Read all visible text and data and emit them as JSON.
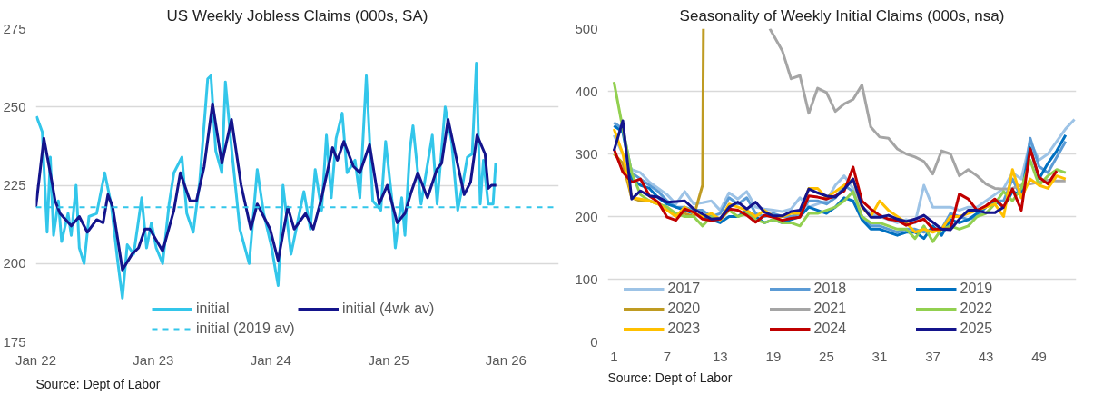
{
  "chart_data": [
    {
      "type": "line",
      "title": "US Weekly Jobless Claims (000s, SA)",
      "annotations": [
        "Source: Dept of Labor"
      ],
      "xlim": [
        "2022-01-01",
        "2026-06-14"
      ],
      "xticks": [
        {
          "value": "2022-01-01",
          "label": "Jan 22"
        },
        {
          "value": "2023-01-01",
          "label": "Jan 23"
        },
        {
          "value": "2024-01-01",
          "label": "Jan 24"
        },
        {
          "value": "2025-01-01",
          "label": "Jan 25"
        },
        {
          "value": "2026-01-01",
          "label": "Jan 26"
        }
      ],
      "ylim": [
        175,
        275
      ],
      "yticks": [
        175,
        200,
        225,
        250,
        275
      ],
      "grid": "y",
      "legend": "bottom",
      "ref_lines": [
        {
          "axis": "y",
          "value": 218,
          "label": "initial (2019 av)",
          "color": "#33c6ea",
          "line_style": "dashed"
        }
      ],
      "series": [
        {
          "name": "initial",
          "color": "#33c6ea",
          "x": [
            "2022-01-03",
            "2022-01-21",
            "2022-02-05",
            "2022-02-15",
            "2022-02-25",
            "2022-03-12",
            "2022-03-22",
            "2022-04-11",
            "2022-04-21",
            "2022-05-06",
            "2022-05-16",
            "2022-05-31",
            "2022-06-15",
            "2022-07-09",
            "2022-08-03",
            "2022-08-23",
            "2022-09-12",
            "2022-09-27",
            "2022-10-12",
            "2022-11-01",
            "2022-11-26",
            "2022-12-11",
            "2022-12-26",
            "2023-01-10",
            "2023-01-30",
            "2023-02-19",
            "2023-03-06",
            "2023-03-31",
            "2023-04-15",
            "2023-05-05",
            "2023-05-25",
            "2023-06-19",
            "2023-06-29",
            "2023-07-14",
            "2023-08-02",
            "2023-08-13",
            "2023-09-01",
            "2023-09-27",
            "2023-10-26",
            "2023-11-20",
            "2023-12-10",
            "2024-01-04",
            "2024-01-17",
            "2024-01-24",
            "2024-02-08",
            "2024-03-04",
            "2024-04-13",
            "2024-05-03",
            "2024-05-18",
            "2024-06-07",
            "2024-06-22",
            "2024-07-07",
            "2024-07-22",
            "2024-08-10",
            "2024-08-25",
            "2024-09-19",
            "2024-10-04",
            "2024-10-24",
            "2024-11-13",
            "2024-12-08",
            "2024-12-23",
            "2025-01-12",
            "2025-01-22",
            "2025-02-11",
            "2025-02-21",
            "2025-03-08",
            "2025-03-18",
            "2025-04-12",
            "2025-05-17",
            "2025-06-01",
            "2025-06-26",
            "2025-07-16",
            "2025-08-04",
            "2025-08-19",
            "2025-09-03",
            "2025-09-18",
            "2025-10-01",
            "2025-10-13",
            "2025-10-23",
            "2025-11-07",
            "2025-11-22",
            "2025-11-30"
          ],
          "values": [
            247,
            242,
            210,
            234,
            209,
            220,
            207,
            216,
            209,
            225,
            205,
            200,
            215,
            216,
            229,
            219,
            201,
            189,
            206,
            203,
            221,
            205,
            213,
            205,
            200,
            219,
            229,
            234,
            216,
            210,
            226,
            259,
            260,
            236,
            229,
            258,
            237,
            211,
            200,
            230,
            216,
            205,
            197,
            193,
            225,
            203,
            223,
            211,
            230,
            217,
            241,
            221,
            240,
            248,
            229,
            233,
            221,
            260,
            220,
            217,
            239,
            220,
            205,
            221,
            209,
            236,
            244,
            219,
            241,
            219,
            250,
            239,
            217,
            225,
            234,
            235,
            264,
            219,
            233,
            219,
            219,
            232
          ]
        },
        {
          "name": "initial (4wk av)",
          "color": "#14148c",
          "x": [
            "2022-01-01",
            "2022-01-26",
            "2022-02-20",
            "2022-03-02",
            "2022-03-17",
            "2022-04-21",
            "2022-05-16",
            "2022-06-10",
            "2022-07-09",
            "2022-07-29",
            "2022-08-13",
            "2022-08-28",
            "2022-09-27",
            "2022-10-27",
            "2022-11-16",
            "2022-12-06",
            "2022-12-21",
            "2023-01-30",
            "2023-03-06",
            "2023-03-26",
            "2023-04-25",
            "2023-05-15",
            "2023-06-08",
            "2023-07-04",
            "2023-08-02",
            "2023-09-01",
            "2023-10-01",
            "2023-10-31",
            "2023-11-20",
            "2023-12-30",
            "2024-01-24",
            "2024-02-23",
            "2024-03-14",
            "2024-04-18",
            "2024-05-12",
            "2024-06-07",
            "2024-07-11",
            "2024-07-26",
            "2024-08-15",
            "2024-09-14",
            "2024-10-04",
            "2024-11-03",
            "2024-12-03",
            "2024-12-28",
            "2025-01-28",
            "2025-02-21",
            "2025-03-13",
            "2025-04-02",
            "2025-05-02",
            "2025-05-31",
            "2025-06-15",
            "2025-07-05",
            "2025-07-30",
            "2025-08-24",
            "2025-09-13",
            "2025-10-03",
            "2025-10-28",
            "2025-11-07",
            "2025-11-17",
            "2025-12-02"
          ],
          "values": [
            218,
            240,
            226,
            220,
            216,
            212,
            215,
            210,
            214,
            213,
            222,
            218,
            198,
            203,
            205,
            211,
            211,
            204,
            217,
            229,
            220,
            220,
            231,
            251,
            232,
            246,
            225,
            211,
            219,
            211,
            201,
            218,
            211,
            216,
            211,
            221,
            237,
            233,
            239,
            231,
            229,
            238,
            219,
            225,
            213,
            216,
            223,
            229,
            221,
            230,
            232,
            246,
            234,
            222,
            226,
            241,
            235,
            224,
            225,
            225
          ]
        }
      ]
    },
    {
      "type": "line",
      "title": "Seasonality of Weekly Initial Claims (000s, nsa)",
      "annotations": [
        "Source: Dept of Labor"
      ],
      "xlim": [
        0.3,
        53.2
      ],
      "xticks": [
        1,
        7,
        13,
        19,
        25,
        31,
        37,
        43,
        49
      ],
      "ylim": [
        0,
        500
      ],
      "yticks": [
        0,
        100,
        200,
        300,
        400,
        500
      ],
      "grid": "y",
      "legend": "bottom",
      "series": [
        {
          "name": "2017",
          "color": "#9dc3e6",
          "x": [
            1,
            2,
            3,
            4,
            5,
            6,
            7,
            8,
            9,
            10,
            11,
            12,
            13,
            14,
            15,
            16,
            17,
            18,
            19,
            20,
            21,
            22,
            23,
            24,
            25,
            26,
            27,
            28,
            29,
            30,
            31,
            32,
            33,
            34,
            35,
            36,
            37,
            38,
            39,
            40,
            41,
            42,
            43,
            44,
            45,
            46,
            47,
            48,
            49,
            50,
            51,
            52,
            53
          ],
          "values": [
            330,
            300,
            275,
            270,
            255,
            245,
            235,
            220,
            240,
            220,
            222,
            225,
            210,
            238,
            228,
            240,
            215,
            212,
            210,
            208,
            212,
            230,
            215,
            220,
            225,
            250,
            265,
            245,
            215,
            205,
            200,
            195,
            190,
            195,
            190,
            250,
            215,
            215,
            215,
            210,
            215,
            215,
            225,
            235,
            245,
            270,
            260,
            320,
            290,
            300,
            320,
            340,
            355
          ]
        },
        {
          "name": "2018",
          "color": "#5b9bd5",
          "x": [
            1,
            2,
            3,
            4,
            5,
            6,
            7,
            8,
            9,
            10,
            11,
            12,
            13,
            14,
            15,
            16,
            17,
            18,
            19,
            20,
            21,
            22,
            23,
            24,
            25,
            26,
            27,
            28,
            29,
            30,
            31,
            32,
            33,
            34,
            35,
            36,
            37,
            38,
            39,
            40,
            41,
            42,
            43,
            44,
            45,
            46,
            47,
            48,
            49,
            50,
            51,
            52
          ],
          "values": [
            350,
            340,
            270,
            260,
            250,
            240,
            225,
            215,
            215,
            210,
            210,
            200,
            205,
            230,
            220,
            230,
            205,
            200,
            205,
            200,
            200,
            205,
            225,
            225,
            220,
            230,
            250,
            240,
            200,
            185,
            185,
            180,
            175,
            180,
            180,
            175,
            180,
            180,
            205,
            200,
            195,
            200,
            215,
            225,
            225,
            260,
            230,
            325,
            280,
            270,
            295,
            320
          ]
        },
        {
          "name": "2019",
          "color": "#0070c0",
          "x": [
            1,
            2,
            3,
            4,
            5,
            6,
            7,
            8,
            9,
            10,
            11,
            12,
            13,
            14,
            15,
            16,
            17,
            18,
            19,
            20,
            21,
            22,
            23,
            24,
            25,
            26,
            27,
            28,
            29,
            30,
            31,
            32,
            33,
            34,
            35,
            36,
            37,
            38,
            39,
            40,
            41,
            42,
            43,
            44,
            45,
            46,
            47,
            48,
            49,
            50,
            51,
            52
          ],
          "values": [
            345,
            335,
            260,
            250,
            245,
            230,
            220,
            215,
            210,
            205,
            200,
            195,
            190,
            200,
            200,
            210,
            200,
            190,
            195,
            190,
            195,
            200,
            215,
            210,
            205,
            215,
            230,
            225,
            195,
            180,
            180,
            175,
            170,
            175,
            175,
            165,
            185,
            170,
            195,
            190,
            195,
            205,
            215,
            225,
            215,
            240,
            235,
            310,
            260,
            285,
            305,
            330
          ]
        },
        {
          "name": "2020",
          "color": "#bf9b22",
          "x": [
            1,
            2,
            3,
            4,
            5,
            6,
            7,
            8,
            9,
            10,
            11,
            11.1
          ],
          "values": [
            300,
            285,
            230,
            225,
            225,
            220,
            215,
            200,
            205,
            200,
            250,
            500
          ]
        },
        {
          "name": "2021",
          "color": "#a5a5a5",
          "x": [
            18.6,
            19,
            20,
            21,
            22,
            23,
            24,
            25,
            26,
            27,
            28,
            29,
            30,
            31,
            32,
            33,
            34,
            35,
            36,
            37,
            38,
            39,
            40,
            41,
            42,
            43,
            44,
            45,
            46,
            47,
            48,
            49,
            50,
            51,
            52
          ],
          "values": [
            500,
            490,
            465,
            420,
            425,
            365,
            405,
            398,
            368,
            380,
            387,
            410,
            343,
            327,
            325,
            308,
            300,
            295,
            288,
            268,
            305,
            300,
            265,
            275,
            265,
            252,
            245,
            244,
            245,
            250,
            252,
            255,
            258,
            257,
            257
          ]
        },
        {
          "name": "2022",
          "color": "#92d050",
          "x": [
            1,
            2,
            3,
            4,
            5,
            6,
            7,
            8,
            9,
            10,
            11,
            12,
            13,
            14,
            15,
            16,
            17,
            18,
            19,
            20,
            21,
            22,
            23,
            24,
            25,
            26,
            27,
            28,
            29,
            30,
            31,
            32,
            33,
            34,
            35,
            36,
            37,
            38,
            39,
            40,
            41,
            42,
            43,
            44,
            45,
            46,
            47,
            48,
            49,
            50,
            51,
            52
          ],
          "values": [
            415,
            340,
            270,
            235,
            225,
            220,
            215,
            205,
            200,
            200,
            185,
            200,
            195,
            210,
            200,
            205,
            195,
            190,
            195,
            190,
            190,
            185,
            205,
            205,
            210,
            215,
            225,
            240,
            200,
            190,
            190,
            185,
            180,
            180,
            165,
            185,
            160,
            180,
            185,
            180,
            185,
            200,
            205,
            220,
            240,
            225,
            245,
            290,
            250,
            265,
            275,
            270
          ]
        },
        {
          "name": "2023",
          "color": "#ffc000",
          "x": [
            1,
            2,
            3,
            4,
            5,
            6,
            7,
            8,
            9,
            10,
            11,
            12,
            13,
            14,
            15,
            16,
            17,
            18,
            19,
            20,
            21,
            22,
            23,
            24,
            25,
            26,
            27,
            28,
            29,
            30,
            31,
            32,
            33,
            34,
            35,
            36,
            37,
            38,
            39,
            40,
            41,
            42,
            43,
            44,
            45,
            46,
            47,
            48,
            49,
            50,
            51,
            52
          ],
          "values": [
            340,
            300,
            230,
            228,
            225,
            220,
            210,
            200,
            215,
            205,
            200,
            205,
            195,
            220,
            215,
            210,
            200,
            210,
            200,
            200,
            205,
            205,
            245,
            245,
            230,
            240,
            250,
            260,
            215,
            200,
            225,
            210,
            200,
            190,
            175,
            180,
            175,
            180,
            200,
            200,
            205,
            210,
            215,
            220,
            200,
            275,
            230,
            260,
            250,
            245,
            265,
            260
          ]
        },
        {
          "name": "2024",
          "color": "#c00000",
          "x": [
            1,
            2,
            3,
            4,
            5,
            6,
            7,
            8,
            9,
            10,
            11,
            12,
            13,
            14,
            15,
            16,
            17,
            18,
            19,
            20,
            21,
            22,
            23,
            24,
            25,
            26,
            27,
            28,
            29,
            30,
            31,
            32,
            33,
            34,
            35,
            36,
            37,
            38,
            39,
            40,
            41,
            42,
            43,
            44,
            45,
            46,
            47,
            48,
            49,
            50,
            51
          ],
          "values": [
            308,
            271,
            255,
            260,
            233,
            223,
            199,
            194,
            212,
            207,
            196,
            194,
            196,
            212,
            210,
            202,
            191,
            202,
            199,
            194,
            197,
            199,
            233,
            231,
            228,
            233,
            241,
            279,
            225,
            212,
            202,
            196,
            194,
            186,
            191,
            196,
            180,
            180,
            180,
            236,
            228,
            210,
            217,
            228,
            215,
            244,
            210,
            308,
            263,
            252,
            273
          ]
        },
        {
          "name": "2025",
          "color": "#14148c",
          "x": [
            1,
            2,
            3,
            4,
            5,
            6,
            7,
            8,
            9,
            10,
            11,
            12,
            13,
            14,
            15,
            16,
            17,
            18,
            19,
            20,
            21,
            22,
            23,
            24,
            25,
            26,
            27,
            28,
            29,
            30,
            31,
            32,
            33,
            34,
            35,
            36,
            37,
            38,
            39,
            40,
            41,
            42,
            43,
            44,
            45
          ],
          "values": [
            305,
            353,
            228,
            241,
            233,
            231,
            223,
            224,
            225,
            212,
            204,
            196,
            197,
            215,
            223,
            212,
            223,
            207,
            201,
            201,
            208,
            210,
            244,
            238,
            233,
            231,
            244,
            260,
            217,
            199,
            199,
            202,
            196,
            192,
            196,
            202,
            191,
            180,
            179,
            196,
            210,
            210,
            206,
            206,
            215
          ]
        }
      ]
    }
  ]
}
